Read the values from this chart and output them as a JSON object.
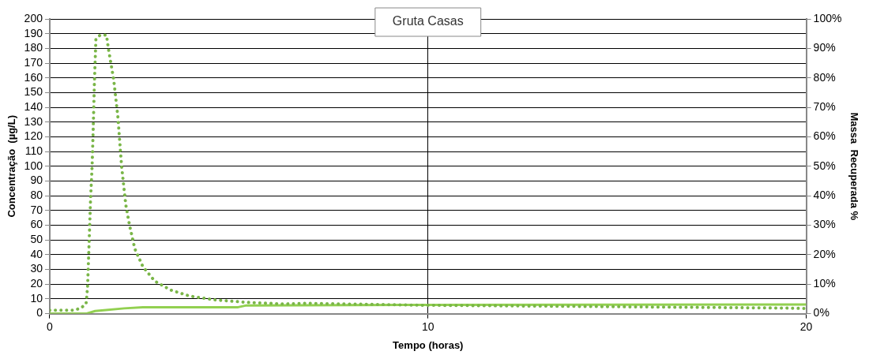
{
  "chart_data": {
    "type": "line",
    "title": "Gruta Casas",
    "xlabel": "Tempo (horas)",
    "ylabel": "Concentração  (µg/L)",
    "y2label": "Massa  Recuperada %",
    "xlim": [
      0,
      20
    ],
    "xticks": [
      0,
      10,
      20
    ],
    "ylim": [
      0,
      200
    ],
    "yticks": [
      0,
      10,
      20,
      30,
      40,
      50,
      60,
      70,
      80,
      90,
      100,
      110,
      120,
      130,
      140,
      150,
      160,
      170,
      180,
      190,
      200
    ],
    "y2lim": [
      0,
      100
    ],
    "y2ticks": [
      {
        "value": 0,
        "label": "0%"
      },
      {
        "value": 10,
        "label": "10%"
      },
      {
        "value": 20,
        "label": "20%"
      },
      {
        "value": 30,
        "label": "30%"
      },
      {
        "value": 40,
        "label": "40%"
      },
      {
        "value": 50,
        "label": "50%"
      },
      {
        "value": 60,
        "label": "60%"
      },
      {
        "value": 70,
        "label": "70%"
      },
      {
        "value": 80,
        "label": "80%"
      },
      {
        "value": 90,
        "label": "90%"
      },
      {
        "value": 100,
        "label": "100%"
      }
    ],
    "grid": true,
    "legend": false,
    "marker": "none",
    "series": [
      {
        "color": "#7ab648",
        "line_style": "dotted",
        "x": [
          0,
          0.64,
          0.82,
          0.96,
          1.0,
          1.03,
          1.08,
          1.12,
          1.15,
          1.18,
          1.22,
          1.33,
          1.5,
          1.55,
          1.69,
          1.8,
          1.9,
          2.01,
          2.11,
          2.25,
          2.46,
          2.78,
          3.2,
          3.69,
          4.35,
          5.19,
          6.17,
          6.8,
          9.95,
          14.1,
          19.4,
          20
        ],
        "values": [
          2.3,
          2.3,
          3.8,
          6.5,
          18,
          40,
          78,
          100,
          126,
          156,
          186,
          189,
          189,
          180,
          159,
          134,
          100,
          74,
          60,
          44,
          32,
          22,
          16,
          12,
          9.4,
          7.7,
          6.6,
          7,
          5.7,
          4.9,
          3.8,
          3.5
        ]
      },
      {
        "color": "#92d050",
        "line_style": "solid",
        "axis": "y2",
        "x": [
          0,
          0.96,
          1.2,
          1.97,
          2.46,
          4.98,
          5.2,
          10,
          20
        ],
        "values": [
          0,
          0,
          0.9,
          1.8,
          2.2,
          2.2,
          2.8,
          3,
          3.1
        ]
      }
    ]
  }
}
